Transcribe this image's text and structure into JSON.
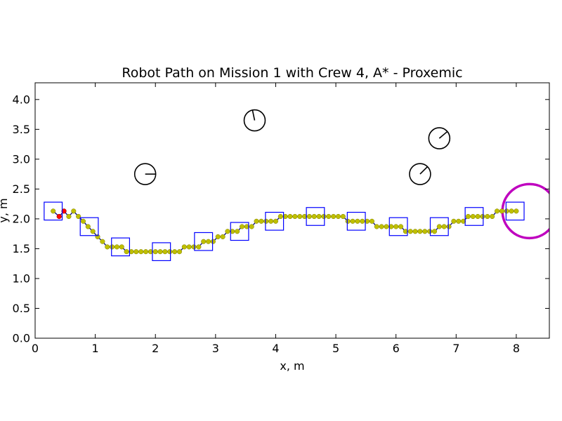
{
  "chart_data": {
    "type": "scatter",
    "title": "Robot Path on Mission 1 with Crew 4, A* - Proxemic",
    "xlabel": "x, m",
    "ylabel": "y, m",
    "xlim": [
      0,
      8.55
    ],
    "ylim": [
      0,
      4.28
    ],
    "xticks": [
      "0",
      "1",
      "2",
      "3",
      "4",
      "5",
      "6",
      "7",
      "8"
    ],
    "yticks": [
      "0.0",
      "0.5",
      "1.0",
      "1.5",
      "2.0",
      "2.5",
      "3.0",
      "3.5",
      "4.0"
    ],
    "grid": false,
    "colors": {
      "path_line": "#000080",
      "path_points": "#bfbf00",
      "start_marker": "#ff0000",
      "pose_box": "#0000ff",
      "goal": "#bf00bf",
      "crew": "#000000"
    },
    "path": [
      [
        0.3,
        2.13
      ],
      [
        0.4,
        2.04
      ],
      [
        0.48,
        2.13
      ],
      [
        0.56,
        2.04
      ],
      [
        0.64,
        2.13
      ],
      [
        0.72,
        2.04
      ],
      [
        0.8,
        1.96
      ],
      [
        0.88,
        1.87
      ],
      [
        0.96,
        1.79
      ],
      [
        1.04,
        1.7
      ],
      [
        1.12,
        1.62
      ],
      [
        1.2,
        1.53
      ],
      [
        1.28,
        1.53
      ],
      [
        1.36,
        1.53
      ],
      [
        1.44,
        1.53
      ],
      [
        1.52,
        1.45
      ],
      [
        1.6,
        1.45
      ],
      [
        1.68,
        1.45
      ],
      [
        1.76,
        1.45
      ],
      [
        1.84,
        1.45
      ],
      [
        1.92,
        1.45
      ],
      [
        2.0,
        1.45
      ],
      [
        2.08,
        1.45
      ],
      [
        2.16,
        1.45
      ],
      [
        2.24,
        1.45
      ],
      [
        2.32,
        1.45
      ],
      [
        2.4,
        1.45
      ],
      [
        2.48,
        1.53
      ],
      [
        2.56,
        1.53
      ],
      [
        2.64,
        1.53
      ],
      [
        2.72,
        1.53
      ],
      [
        2.8,
        1.62
      ],
      [
        2.88,
        1.62
      ],
      [
        2.96,
        1.62
      ],
      [
        3.04,
        1.7
      ],
      [
        3.12,
        1.7
      ],
      [
        3.2,
        1.79
      ],
      [
        3.28,
        1.79
      ],
      [
        3.36,
        1.79
      ],
      [
        3.44,
        1.87
      ],
      [
        3.52,
        1.87
      ],
      [
        3.6,
        1.87
      ],
      [
        3.68,
        1.96
      ],
      [
        3.76,
        1.96
      ],
      [
        3.84,
        1.96
      ],
      [
        3.92,
        1.96
      ],
      [
        4.0,
        1.96
      ],
      [
        4.08,
        2.04
      ],
      [
        4.16,
        2.04
      ],
      [
        4.24,
        2.04
      ],
      [
        4.32,
        2.04
      ],
      [
        4.4,
        2.04
      ],
      [
        4.48,
        2.04
      ],
      [
        4.56,
        2.04
      ],
      [
        4.64,
        2.04
      ],
      [
        4.72,
        2.04
      ],
      [
        4.8,
        2.04
      ],
      [
        4.88,
        2.04
      ],
      [
        4.96,
        2.04
      ],
      [
        5.04,
        2.04
      ],
      [
        5.12,
        2.04
      ],
      [
        5.2,
        1.96
      ],
      [
        5.28,
        1.96
      ],
      [
        5.36,
        1.96
      ],
      [
        5.44,
        1.96
      ],
      [
        5.52,
        1.96
      ],
      [
        5.6,
        1.96
      ],
      [
        5.68,
        1.87
      ],
      [
        5.76,
        1.87
      ],
      [
        5.84,
        1.87
      ],
      [
        5.92,
        1.87
      ],
      [
        6.0,
        1.87
      ],
      [
        6.08,
        1.87
      ],
      [
        6.16,
        1.79
      ],
      [
        6.24,
        1.79
      ],
      [
        6.32,
        1.79
      ],
      [
        6.4,
        1.79
      ],
      [
        6.48,
        1.79
      ],
      [
        6.56,
        1.79
      ],
      [
        6.64,
        1.79
      ],
      [
        6.72,
        1.87
      ],
      [
        6.8,
        1.87
      ],
      [
        6.88,
        1.87
      ],
      [
        6.96,
        1.96
      ],
      [
        7.04,
        1.96
      ],
      [
        7.12,
        1.96
      ],
      [
        7.2,
        2.04
      ],
      [
        7.28,
        2.04
      ],
      [
        7.36,
        2.04
      ],
      [
        7.44,
        2.04
      ],
      [
        7.52,
        2.04
      ],
      [
        7.6,
        2.04
      ],
      [
        7.68,
        2.13
      ],
      [
        7.76,
        2.13
      ],
      [
        7.84,
        2.13
      ],
      [
        7.92,
        2.13
      ],
      [
        8.0,
        2.13
      ]
    ],
    "start_points": [
      [
        0.4,
        2.04
      ],
      [
        0.48,
        2.13
      ]
    ],
    "robot_poses": [
      {
        "x": 0.3,
        "y": 2.13
      },
      {
        "x": 0.9,
        "y": 1.87
      },
      {
        "x": 1.42,
        "y": 1.53
      },
      {
        "x": 2.1,
        "y": 1.45
      },
      {
        "x": 2.8,
        "y": 1.62
      },
      {
        "x": 3.4,
        "y": 1.79
      },
      {
        "x": 3.98,
        "y": 1.96
      },
      {
        "x": 4.66,
        "y": 2.04
      },
      {
        "x": 5.34,
        "y": 1.96
      },
      {
        "x": 6.04,
        "y": 1.87
      },
      {
        "x": 6.72,
        "y": 1.87
      },
      {
        "x": 7.3,
        "y": 2.04
      },
      {
        "x": 7.98,
        "y": 2.13
      }
    ],
    "pose_box_size": [
      0.3,
      0.3
    ],
    "crew": [
      {
        "x": 1.83,
        "y": 2.75,
        "r": 0.175,
        "heading_deg": 0
      },
      {
        "x": 3.65,
        "y": 3.65,
        "r": 0.175,
        "heading_deg": 102
      },
      {
        "x": 6.4,
        "y": 2.75,
        "r": 0.175,
        "heading_deg": 45
      },
      {
        "x": 6.72,
        "y": 3.35,
        "r": 0.175,
        "heading_deg": 40
      }
    ],
    "goal": {
      "x": 8.22,
      "y": 2.13,
      "r": 0.45
    }
  }
}
